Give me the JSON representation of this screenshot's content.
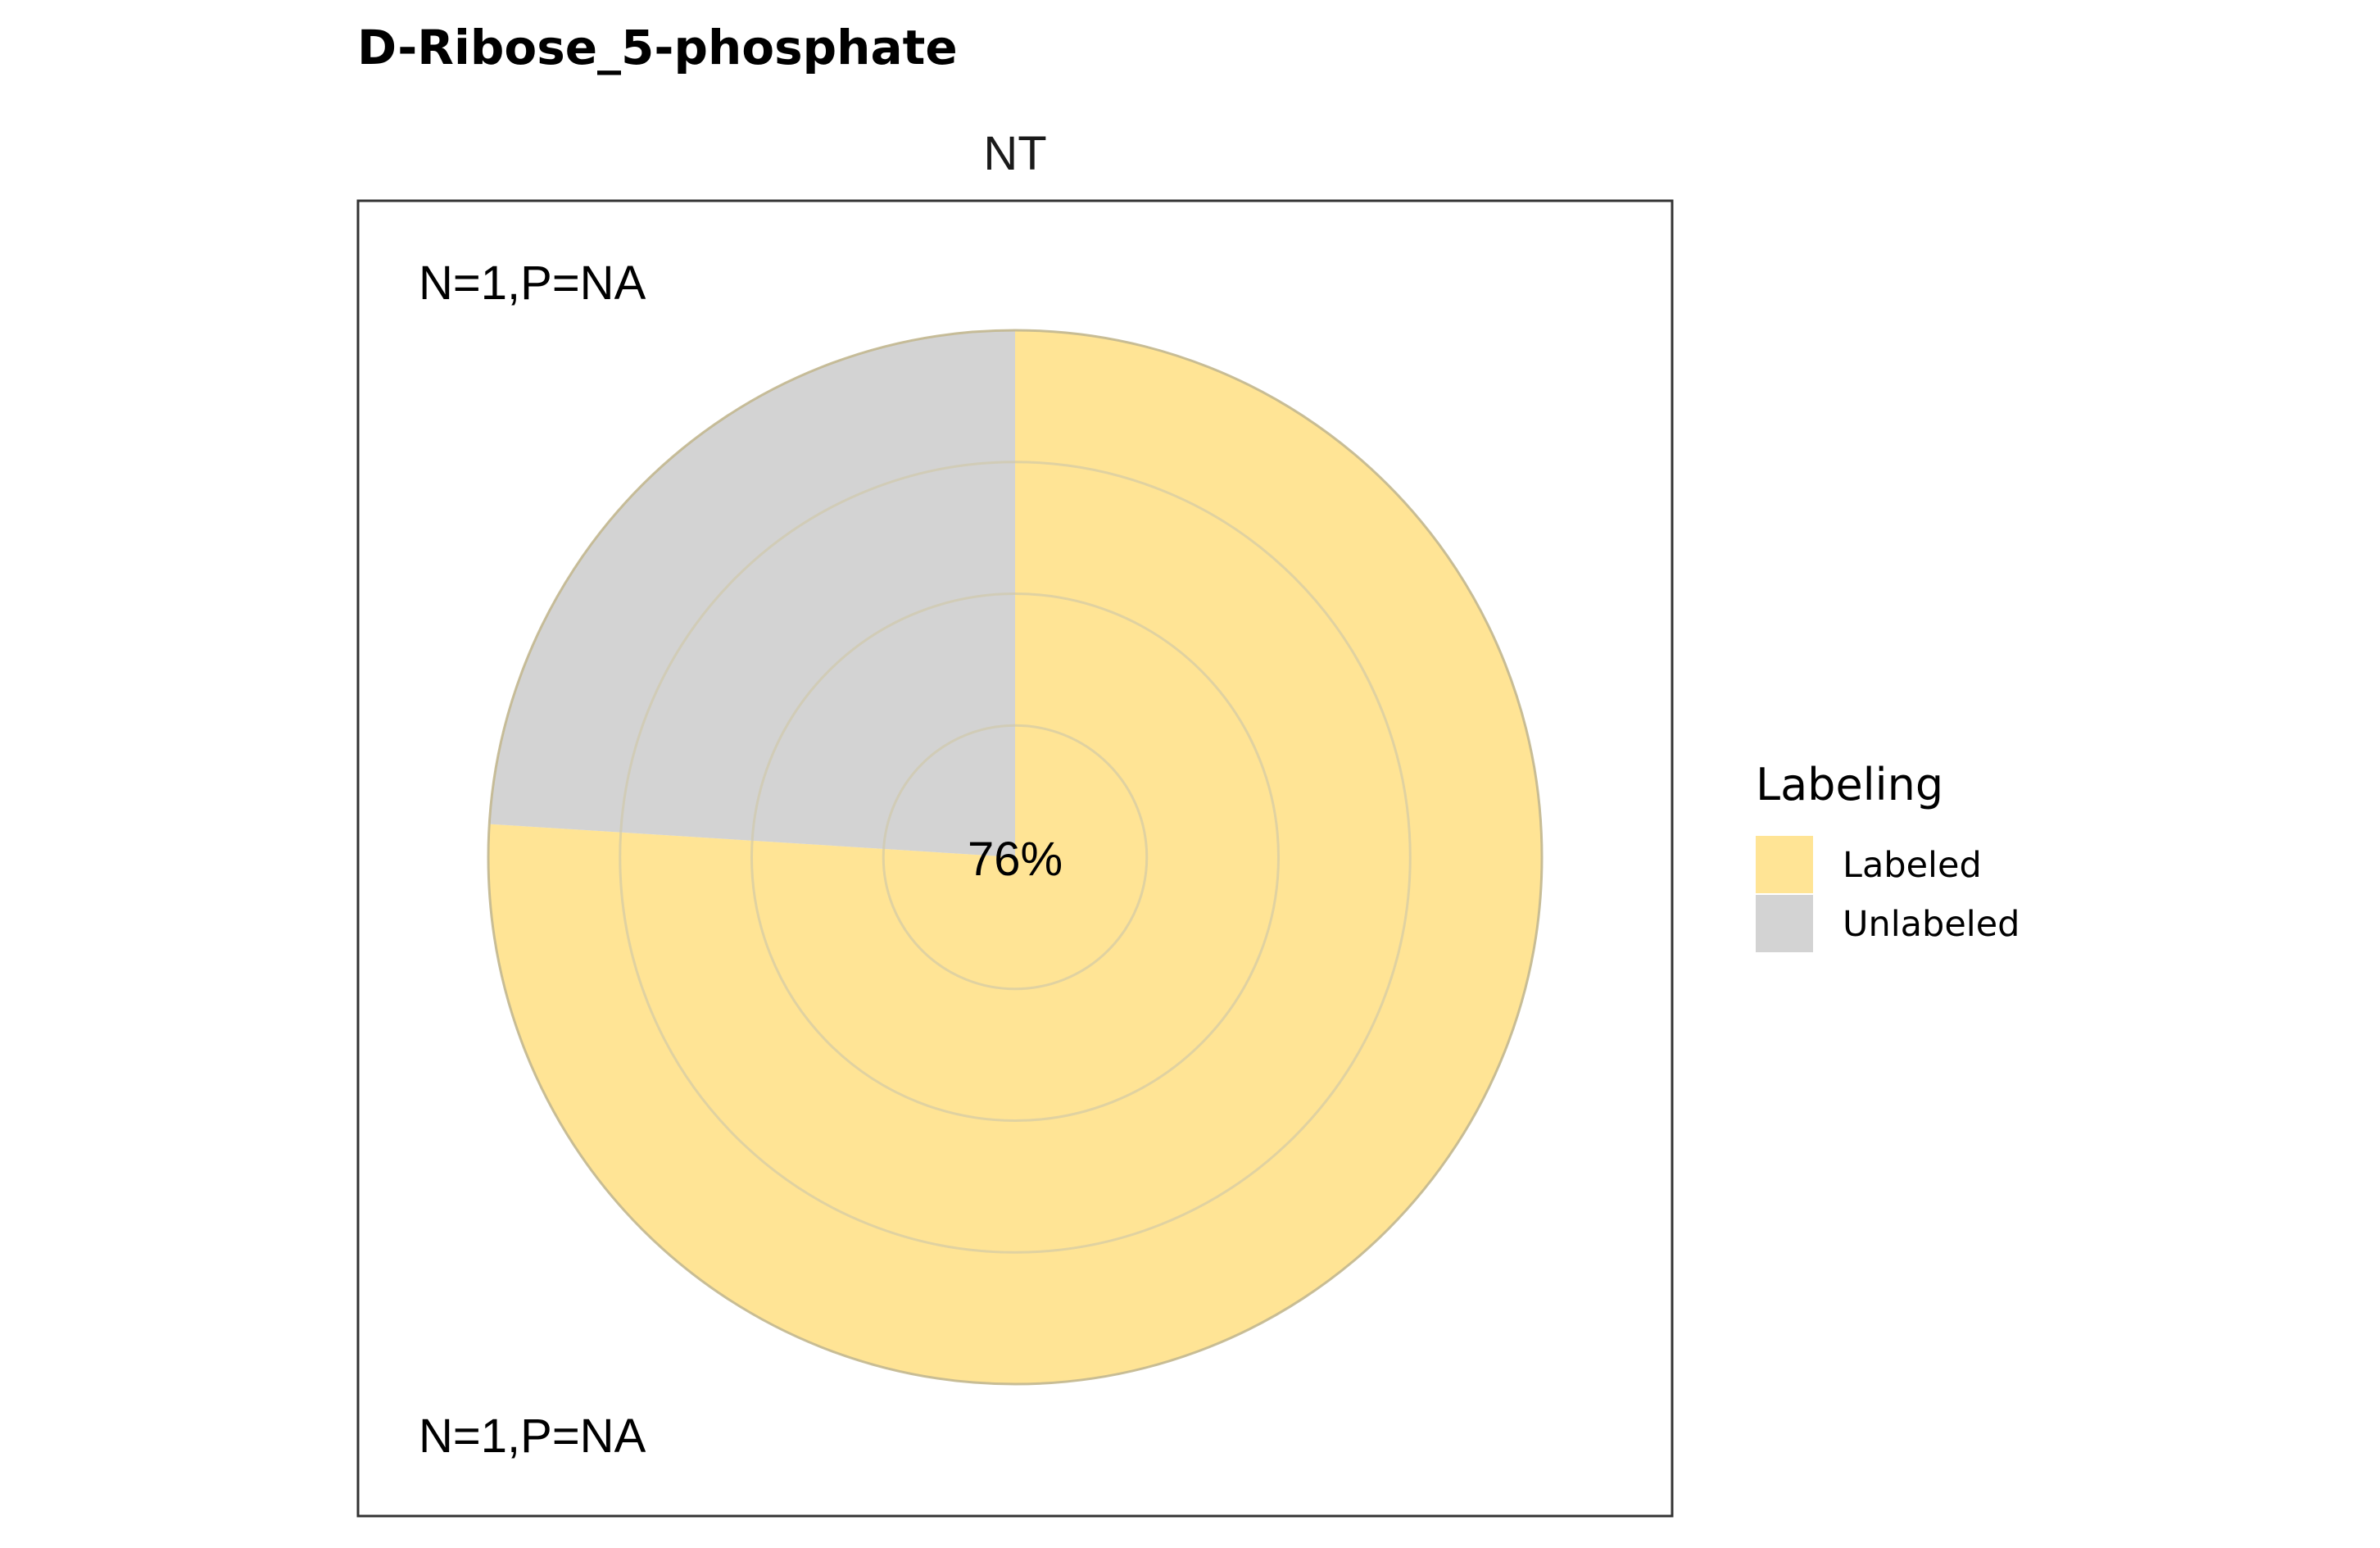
{
  "chart_data": {
    "type": "pie",
    "title": "D-Ribose_5-phosphate",
    "facet": "NT",
    "slices": [
      {
        "label": "Labeled",
        "value": 76,
        "color": "#FFE495"
      },
      {
        "label": "Unlabeled",
        "value": 24,
        "color": "#D3D3D3"
      }
    ],
    "center_label": "76%",
    "annotations": [
      "N=1,P=NA",
      "N=1,P=NA"
    ],
    "legend": {
      "title": "Labeling",
      "entries": [
        {
          "label": "Labeled",
          "color": "#FFE495"
        },
        {
          "label": "Unlabeled",
          "color": "#D3D3D3"
        }
      ],
      "position": "right"
    },
    "grid": true
  }
}
